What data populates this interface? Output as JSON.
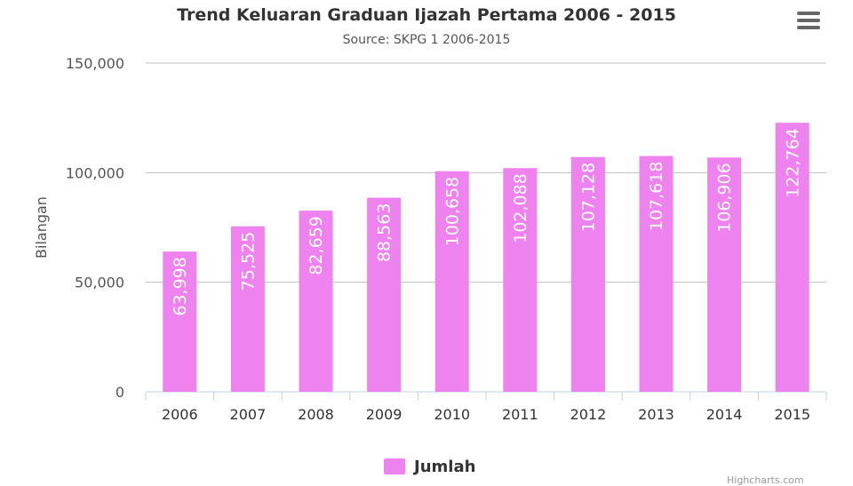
{
  "header": {
    "title": "Trend Keluaran Graduan Ijazah Pertama 2006 - 2015",
    "subtitle": "Source: SKPG 1 2006-2015"
  },
  "menu": {
    "icon": "hamburger-menu-icon"
  },
  "chart_data": {
    "type": "bar",
    "title": "Trend Keluaran Graduan Ijazah Pertama 2006 - 2015",
    "subtitle": "Source: SKPG 1 2006-2015",
    "xlabel": "",
    "ylabel": "Bilangan",
    "categories": [
      "2006",
      "2007",
      "2008",
      "2009",
      "2010",
      "2011",
      "2012",
      "2013",
      "2014",
      "2015"
    ],
    "series": [
      {
        "name": "Jumlah",
        "values": [
          63998,
          75525,
          82659,
          88563,
          100658,
          102088,
          107128,
          107618,
          106906,
          122764
        ],
        "data_labels": [
          "63,998",
          "75,525",
          "82,659",
          "88,563",
          "100,658",
          "102,088",
          "107,128",
          "107,618",
          "106,906",
          "122,764"
        ]
      }
    ],
    "ylim": [
      0,
      150000
    ],
    "yticks": [
      0,
      50000,
      100000,
      150000
    ],
    "ytick_labels": [
      "0",
      "50,000",
      "100,000",
      "150,000"
    ],
    "grid": true,
    "legend_position": "bottom-center"
  },
  "legend": {
    "label": "Jumlah"
  },
  "colors": {
    "bar": "#ee82ee",
    "grid": "#c0c0c0",
    "axis": "#c0d0e0",
    "data_label": "#ffffff",
    "text": "#333333"
  },
  "credits": "Highcharts.com"
}
